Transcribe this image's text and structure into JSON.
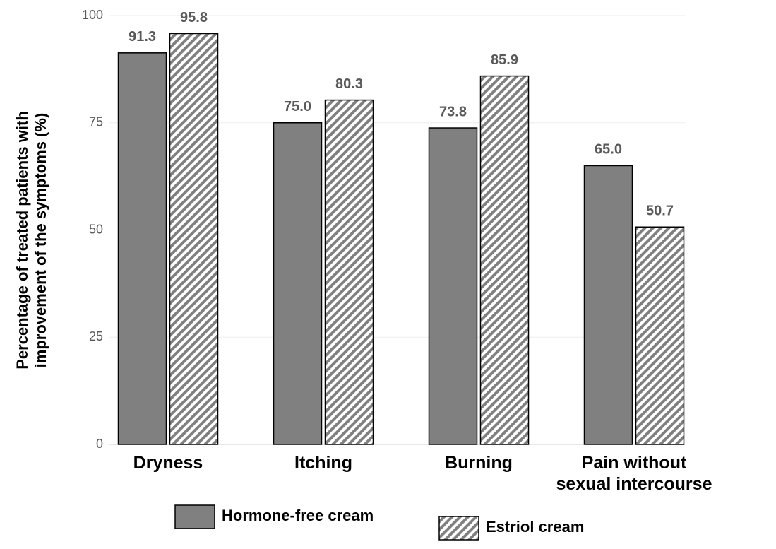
{
  "chart_data": {
    "type": "bar",
    "ylabel": "Percentage of treated patients with\nimprovement of the symptoms (%)",
    "categories": [
      "Dryness",
      "Itching",
      "Burning",
      "Pain without\nsexual intercourse"
    ],
    "series": [
      {
        "name": "Hormone-free cream",
        "color": "#808080",
        "pattern": "solid",
        "values": [
          91.3,
          75,
          73.8,
          65
        ],
        "value_labels": [
          "91.3",
          "75.0",
          "73.8",
          "65.0"
        ]
      },
      {
        "name": "Estriol cream",
        "color": "#808080",
        "pattern": "hatch",
        "values": [
          95.8,
          80.3,
          85.9,
          50.7
        ],
        "value_labels": [
          "95.8",
          "80.3",
          "85.9",
          "50.7"
        ]
      }
    ],
    "ylim": [
      0,
      100
    ],
    "yticks": [
      0,
      25,
      50,
      75,
      100
    ],
    "grid": true,
    "legend": "bottom"
  }
}
